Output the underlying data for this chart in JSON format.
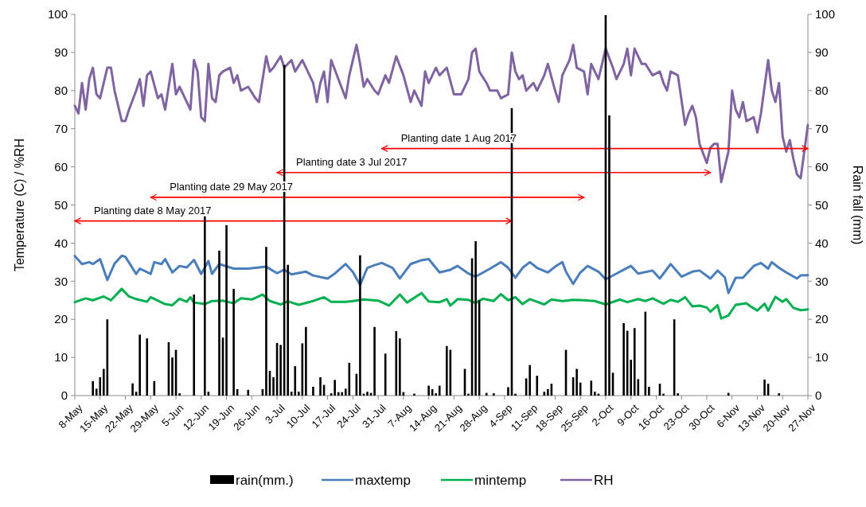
{
  "chart_data": {
    "type": "line",
    "xlabel": null,
    "ylabel": "Temperature (C) / %RH",
    "y2label": "Rain fall (mm)",
    "legend": "bottom",
    "xlim": [
      "2017-05-08",
      "2017-11-27"
    ],
    "xticks": [
      {
        "value": "2017-05-08",
        "label": "8-May"
      },
      {
        "value": "2017-05-15",
        "label": "15-May"
      },
      {
        "value": "2017-05-22",
        "label": "22-May"
      },
      {
        "value": "2017-05-29",
        "label": "29-May"
      },
      {
        "value": "2017-06-05",
        "label": "5-Jun"
      },
      {
        "value": "2017-06-12",
        "label": "12-Jun"
      },
      {
        "value": "2017-06-19",
        "label": "19-Jun"
      },
      {
        "value": "2017-06-26",
        "label": "26-Jun"
      },
      {
        "value": "2017-07-03",
        "label": "3-Jul"
      },
      {
        "value": "2017-07-10",
        "label": "10-Jul"
      },
      {
        "value": "2017-07-17",
        "label": "17-Jul"
      },
      {
        "value": "2017-07-24",
        "label": "24-Jul"
      },
      {
        "value": "2017-07-31",
        "label": "31-Jul"
      },
      {
        "value": "2017-08-07",
        "label": "7-Aug"
      },
      {
        "value": "2017-08-14",
        "label": "14-Aug"
      },
      {
        "value": "2017-08-21",
        "label": "21-Aug"
      },
      {
        "value": "2017-08-28",
        "label": "28-Aug"
      },
      {
        "value": "2017-09-04",
        "label": "4-Sep"
      },
      {
        "value": "2017-09-11",
        "label": "11-Sep"
      },
      {
        "value": "2017-09-18",
        "label": "18-Sep"
      },
      {
        "value": "2017-09-25",
        "label": "25-Sep"
      },
      {
        "value": "2017-10-02",
        "label": "2-Oct"
      },
      {
        "value": "2017-10-09",
        "label": "9-Oct"
      },
      {
        "value": "2017-10-16",
        "label": "16-Oct"
      },
      {
        "value": "2017-10-23",
        "label": "23-Oct"
      },
      {
        "value": "2017-10-30",
        "label": "30-Oct"
      },
      {
        "value": "2017-11-06",
        "label": "6-Nov"
      },
      {
        "value": "2017-11-13",
        "label": "13-Nov"
      },
      {
        "value": "2017-11-20",
        "label": "20-Nov"
      },
      {
        "value": "2017-11-27",
        "label": "27-Nov"
      }
    ],
    "ylim": [
      0,
      100
    ],
    "yticks": [
      0,
      10,
      20,
      30,
      40,
      50,
      60,
      70,
      80,
      90,
      100
    ],
    "y2lim": [
      0,
      100
    ],
    "y2ticks": [
      0,
      10,
      20,
      30,
      40,
      50,
      60,
      70,
      80,
      90,
      100
    ],
    "annotations": [
      "Planting date 8 May 2017",
      "Planting date 29 May 2017",
      "Planting date 3 Jul 2017",
      "Planting date 1 Aug 2017"
    ],
    "series": [
      {
        "name": "rain(mm.)",
        "type": "bar",
        "axis": "y2",
        "color": "#000000",
        "x": [
          "2017-05-13",
          "2017-05-14",
          "2017-05-15",
          "2017-05-16",
          "2017-05-17",
          "2017-05-24",
          "2017-05-25",
          "2017-05-26",
          "2017-05-28",
          "2017-05-30",
          "2017-06-03",
          "2017-06-04",
          "2017-06-05",
          "2017-06-06",
          "2017-06-10",
          "2017-06-13",
          "2017-06-14",
          "2017-06-17",
          "2017-06-18",
          "2017-06-19",
          "2017-06-21",
          "2017-06-22",
          "2017-06-25",
          "2017-06-29",
          "2017-06-30",
          "2017-07-01",
          "2017-07-02",
          "2017-07-03",
          "2017-07-04",
          "2017-07-05",
          "2017-07-06",
          "2017-07-07",
          "2017-07-08",
          "2017-07-09",
          "2017-07-10",
          "2017-07-11",
          "2017-07-13",
          "2017-07-15",
          "2017-07-16",
          "2017-07-18",
          "2017-07-19",
          "2017-07-20",
          "2017-07-21",
          "2017-07-22",
          "2017-07-23",
          "2017-07-25",
          "2017-07-26",
          "2017-07-27",
          "2017-07-28",
          "2017-07-29",
          "2017-07-30",
          "2017-08-02",
          "2017-08-05",
          "2017-08-06",
          "2017-08-07",
          "2017-08-10",
          "2017-08-14",
          "2017-08-15",
          "2017-08-16",
          "2017-08-17",
          "2017-08-19",
          "2017-08-20",
          "2017-08-24",
          "2017-08-25",
          "2017-08-26",
          "2017-08-27",
          "2017-08-28",
          "2017-08-30",
          "2017-09-01",
          "2017-09-05",
          "2017-09-06",
          "2017-09-07",
          "2017-09-10",
          "2017-09-11",
          "2017-09-13",
          "2017-09-15",
          "2017-09-16",
          "2017-09-17",
          "2017-09-21",
          "2017-09-23",
          "2017-09-24",
          "2017-09-25",
          "2017-09-28",
          "2017-09-29",
          "2017-09-30",
          "2017-10-02",
          "2017-10-03",
          "2017-10-04",
          "2017-10-07",
          "2017-10-08",
          "2017-10-09",
          "2017-10-10",
          "2017-10-11",
          "2017-10-13",
          "2017-10-14",
          "2017-10-17",
          "2017-10-18",
          "2017-10-21",
          "2017-10-22",
          "2017-11-05",
          "2017-11-15",
          "2017-11-16",
          "2017-11-19"
        ],
        "values": [
          3.8,
          1.8,
          4.8,
          7,
          20,
          3.2,
          1,
          16,
          15,
          3.8,
          14,
          10,
          12,
          0.6,
          26.5,
          47,
          1,
          38,
          15.2,
          44.7,
          28,
          1.7,
          1.5,
          1.7,
          39,
          6.5,
          4.8,
          13.8,
          13.3,
          86.7,
          34.3,
          1,
          7.7,
          1,
          13.7,
          18,
          2.3,
          4.8,
          2.8,
          0.6,
          4.1,
          0.9,
          0.9,
          1.8,
          8.6,
          5.7,
          36.8,
          0.5,
          1,
          0.7,
          18,
          11,
          16.9,
          15,
          0.9,
          0.5,
          2.6,
          1.7,
          0.6,
          2.6,
          13,
          12,
          7,
          0.5,
          36,
          40.5,
          25,
          0.7,
          0.6,
          2.2,
          75.4,
          0.5,
          4.5,
          8,
          5.2,
          1,
          1.7,
          3.1,
          12,
          4.8,
          7,
          3.4,
          3.9,
          1,
          0.5,
          99.8,
          73.5,
          6,
          19,
          17,
          9.4,
          17.7,
          4.3,
          22,
          2.3,
          3.1,
          0.5,
          20,
          0.6,
          0.7,
          4.2,
          3.1,
          0.6
        ]
      },
      {
        "name": "maxtemp",
        "color": "#4a7ebb",
        "x": [
          "2017-05-08",
          "2017-05-10",
          "2017-05-12",
          "2017-05-13",
          "2017-05-15",
          "2017-05-17",
          "2017-05-19",
          "2017-05-21",
          "2017-05-22",
          "2017-05-25",
          "2017-05-26",
          "2017-05-29",
          "2017-05-30",
          "2017-06-01",
          "2017-06-02",
          "2017-06-04",
          "2017-06-06",
          "2017-06-08",
          "2017-06-10",
          "2017-06-12",
          "2017-06-14",
          "2017-06-15",
          "2017-06-17",
          "2017-06-21",
          "2017-06-25",
          "2017-06-30",
          "2017-07-03",
          "2017-07-05",
          "2017-07-07",
          "2017-07-11",
          "2017-07-13",
          "2017-07-17",
          "2017-07-19",
          "2017-07-22",
          "2017-07-24",
          "2017-07-26",
          "2017-07-28",
          "2017-07-30",
          "2017-08-01",
          "2017-08-04",
          "2017-08-06",
          "2017-08-09",
          "2017-08-12",
          "2017-08-14",
          "2017-08-17",
          "2017-08-20",
          "2017-08-22",
          "2017-08-25",
          "2017-08-27",
          "2017-08-31",
          "2017-09-03",
          "2017-09-05",
          "2017-09-07",
          "2017-09-09",
          "2017-09-11",
          "2017-09-13",
          "2017-09-16",
          "2017-09-18",
          "2017-09-20",
          "2017-09-21",
          "2017-09-23",
          "2017-09-25",
          "2017-09-27",
          "2017-09-30",
          "2017-10-02",
          "2017-10-05",
          "2017-10-07",
          "2017-10-09",
          "2017-10-11",
          "2017-10-15",
          "2017-10-17",
          "2017-10-20",
          "2017-10-23",
          "2017-10-26",
          "2017-10-28",
          "2017-10-31",
          "2017-11-02",
          "2017-11-04",
          "2017-11-05",
          "2017-11-07",
          "2017-11-09",
          "2017-11-12",
          "2017-11-14",
          "2017-11-16",
          "2017-11-17",
          "2017-11-19",
          "2017-11-21",
          "2017-11-24",
          "2017-11-25",
          "2017-11-27"
        ],
        "values": [
          36.6,
          34.5,
          35,
          34.5,
          35.8,
          30.3,
          34.6,
          36.7,
          36.4,
          31.9,
          33.3,
          31.9,
          35,
          34.5,
          35.8,
          32.3,
          34,
          33.6,
          35.6,
          31.9,
          35.3,
          31.9,
          34.5,
          33.3,
          33.3,
          33.8,
          32.1,
          33,
          31.8,
          32.5,
          31.5,
          30.7,
          32,
          34.5,
          32.4,
          29,
          33.5,
          34.2,
          34.8,
          33.5,
          30.7,
          34.5,
          35.5,
          35.8,
          32.3,
          33,
          34,
          32,
          31.2,
          33.3,
          35,
          33.5,
          30.9,
          33.5,
          35,
          33.5,
          32.3,
          33.8,
          35,
          32.5,
          29.3,
          32.3,
          34,
          32.5,
          30.5,
          32,
          33,
          34,
          32,
          32.8,
          30.7,
          34.5,
          31.2,
          32.5,
          32.8,
          30.7,
          32.8,
          31,
          26.9,
          30.9,
          30.9,
          34,
          34.8,
          33.3,
          35,
          33.5,
          32.3,
          30.7,
          31.5,
          31.6
        ]
      },
      {
        "name": "mintemp",
        "color": "#00b050",
        "x": [
          "2017-05-08",
          "2017-05-11",
          "2017-05-13",
          "2017-05-16",
          "2017-05-18",
          "2017-05-21",
          "2017-05-23",
          "2017-05-25",
          "2017-05-28",
          "2017-05-29",
          "2017-06-02",
          "2017-06-04",
          "2017-06-06",
          "2017-06-08",
          "2017-06-09",
          "2017-06-10",
          "2017-06-13",
          "2017-06-15",
          "2017-06-18",
          "2017-06-21",
          "2017-06-23",
          "2017-06-26",
          "2017-06-29",
          "2017-07-01",
          "2017-07-04",
          "2017-07-06",
          "2017-07-09",
          "2017-07-13",
          "2017-07-16",
          "2017-07-18",
          "2017-07-22",
          "2017-07-24",
          "2017-07-27",
          "2017-07-31",
          "2017-08-03",
          "2017-08-06",
          "2017-08-08",
          "2017-08-12",
          "2017-08-14",
          "2017-08-17",
          "2017-08-19",
          "2017-08-20",
          "2017-08-22",
          "2017-08-25",
          "2017-08-27",
          "2017-08-29",
          "2017-09-01",
          "2017-09-03",
          "2017-09-05",
          "2017-09-07",
          "2017-09-09",
          "2017-09-11",
          "2017-09-13",
          "2017-09-15",
          "2017-09-17",
          "2017-09-20",
          "2017-09-23",
          "2017-09-26",
          "2017-09-29",
          "2017-10-02",
          "2017-10-06",
          "2017-10-08",
          "2017-10-11",
          "2017-10-13",
          "2017-10-15",
          "2017-10-18",
          "2017-10-20",
          "2017-10-22",
          "2017-10-24",
          "2017-10-26",
          "2017-10-28",
          "2017-10-30",
          "2017-10-31",
          "2017-11-02",
          "2017-11-03",
          "2017-11-05",
          "2017-11-07",
          "2017-11-10",
          "2017-11-11",
          "2017-11-13",
          "2017-11-15",
          "2017-11-16",
          "2017-11-18",
          "2017-11-20",
          "2017-11-21",
          "2017-11-23",
          "2017-11-25",
          "2017-11-27"
        ],
        "values": [
          24.5,
          25.5,
          25,
          26,
          25,
          28,
          26,
          25.3,
          24.6,
          25.8,
          24,
          23.7,
          25.4,
          24.6,
          25.8,
          24.4,
          24,
          24.8,
          24.9,
          24.2,
          25.5,
          25.2,
          26.5,
          24.8,
          23.9,
          24.7,
          23.8,
          24.8,
          25.8,
          24.6,
          24.6,
          24.8,
          25.2,
          24.9,
          23.6,
          26.5,
          24.4,
          26.9,
          24.7,
          24.5,
          25.3,
          23.6,
          25.3,
          25.1,
          24.3,
          25.4,
          24.8,
          26.6,
          25,
          25.8,
          24,
          25.3,
          24.6,
          23.9,
          25.2,
          24.8,
          25.1,
          25,
          24.8,
          23.9,
          25.2,
          24.5,
          25.3,
          24.8,
          25.5,
          24.1,
          25.1,
          24.6,
          25.8,
          23.4,
          23.6,
          23.1,
          22,
          23.7,
          20.2,
          21,
          23.8,
          24.2,
          23.5,
          22.3,
          24.1,
          22.3,
          25.9,
          24.6,
          25.3,
          23,
          22.4,
          22.6
        ]
      },
      {
        "name": "RH",
        "color": "#8064a2",
        "x": [
          "2017-05-08",
          "2017-05-09",
          "2017-05-10",
          "2017-05-11",
          "2017-05-12",
          "2017-05-13",
          "2017-05-14",
          "2017-05-15",
          "2017-05-17",
          "2017-05-18",
          "2017-05-19",
          "2017-05-21",
          "2017-05-22",
          "2017-05-23",
          "2017-05-25",
          "2017-05-26",
          "2017-05-27",
          "2017-05-28",
          "2017-05-29",
          "2017-05-31",
          "2017-06-01",
          "2017-06-02",
          "2017-06-04",
          "2017-06-05",
          "2017-06-06",
          "2017-06-08",
          "2017-06-09",
          "2017-06-10",
          "2017-06-11",
          "2017-06-12",
          "2017-06-13",
          "2017-06-14",
          "2017-06-15",
          "2017-06-16",
          "2017-06-17",
          "2017-06-18",
          "2017-06-20",
          "2017-06-21",
          "2017-06-22",
          "2017-06-23",
          "2017-06-25",
          "2017-06-27",
          "2017-06-28",
          "2017-06-30",
          "2017-07-01",
          "2017-07-02",
          "2017-07-04",
          "2017-07-05",
          "2017-07-07",
          "2017-07-08",
          "2017-07-10",
          "2017-07-12",
          "2017-07-13",
          "2017-07-14",
          "2017-07-15",
          "2017-07-16",
          "2017-07-17",
          "2017-07-18",
          "2017-07-20",
          "2017-07-22",
          "2017-07-23",
          "2017-07-25",
          "2017-07-26",
          "2017-07-27",
          "2017-07-28",
          "2017-07-30",
          "2017-07-31",
          "2017-08-02",
          "2017-08-03",
          "2017-08-05",
          "2017-08-07",
          "2017-08-09",
          "2017-08-10",
          "2017-08-12",
          "2017-08-13",
          "2017-08-14",
          "2017-08-16",
          "2017-08-17",
          "2017-08-19",
          "2017-08-21",
          "2017-08-23",
          "2017-08-25",
          "2017-08-26",
          "2017-08-27",
          "2017-08-28",
          "2017-08-30",
          "2017-08-31",
          "2017-09-02",
          "2017-09-03",
          "2017-09-05",
          "2017-09-06",
          "2017-09-07",
          "2017-09-08",
          "2017-09-09",
          "2017-09-10",
          "2017-09-12",
          "2017-09-13",
          "2017-09-15",
          "2017-09-16",
          "2017-09-18",
          "2017-09-19",
          "2017-09-20",
          "2017-09-22",
          "2017-09-23",
          "2017-09-24",
          "2017-09-26",
          "2017-09-27",
          "2017-09-28",
          "2017-09-29",
          "2017-09-30",
          "2017-10-02",
          "2017-10-04",
          "2017-10-05",
          "2017-10-07",
          "2017-10-08",
          "2017-10-09",
          "2017-10-10",
          "2017-10-12",
          "2017-10-13",
          "2017-10-15",
          "2017-10-17",
          "2017-10-18",
          "2017-10-19",
          "2017-10-20",
          "2017-10-22",
          "2017-10-24",
          "2017-10-25",
          "2017-10-26",
          "2017-10-27",
          "2017-10-28",
          "2017-10-30",
          "2017-10-31",
          "2017-11-01",
          "2017-11-02",
          "2017-11-03",
          "2017-11-04",
          "2017-11-05",
          "2017-11-06",
          "2017-11-07",
          "2017-11-08",
          "2017-11-09",
          "2017-11-10",
          "2017-11-12",
          "2017-11-13",
          "2017-11-14",
          "2017-11-16",
          "2017-11-17",
          "2017-11-18",
          "2017-11-19",
          "2017-11-20",
          "2017-11-21",
          "2017-11-22",
          "2017-11-23",
          "2017-11-24",
          "2017-11-25",
          "2017-11-27"
        ],
        "values": [
          76,
          74,
          82,
          75,
          83,
          86,
          79,
          78,
          86,
          86,
          80,
          72,
          72,
          75,
          80,
          83,
          76,
          84,
          85,
          78,
          79,
          75,
          87,
          79,
          81,
          77,
          75,
          88,
          85,
          73,
          72,
          87,
          78,
          77,
          84,
          85,
          86,
          82,
          84,
          80,
          81,
          78,
          77,
          89,
          85,
          86,
          89,
          86,
          88,
          85,
          88,
          84,
          82,
          77,
          82,
          85,
          77,
          88,
          83,
          78,
          84,
          92,
          87,
          81,
          83,
          80,
          79,
          84,
          82,
          89,
          84,
          77,
          80,
          76,
          85,
          82,
          86,
          84,
          86,
          79,
          79,
          83,
          90,
          91,
          85,
          82,
          80,
          80,
          78,
          79,
          90,
          85,
          83,
          84,
          80,
          82,
          80,
          84,
          87,
          80,
          77,
          84,
          88,
          92,
          86,
          85,
          79,
          87,
          85,
          83,
          91,
          86,
          83,
          87,
          91,
          84,
          91,
          87,
          87,
          84,
          85,
          82,
          80,
          85,
          84,
          71,
          74,
          76,
          73,
          66,
          61,
          65,
          66,
          66,
          56,
          60,
          64,
          80,
          75,
          73,
          77,
          72,
          73,
          69,
          74,
          88,
          80,
          77,
          82,
          68,
          64,
          67,
          62,
          58,
          57,
          71
        ]
      },
      {
        "color": "#ff0000",
        "x": [
          "2017-05-08",
          "2017-09-06"
        ],
        "values": [
          45.8,
          45.8
        ]
      },
      {
        "color": "#ff0000",
        "x": [
          "2017-05-29",
          "2017-09-26"
        ],
        "values": [
          52,
          52
        ]
      },
      {
        "color": "#ff0000",
        "x": [
          "2017-07-03",
          "2017-10-31"
        ],
        "values": [
          58.5,
          58.5
        ]
      },
      {
        "color": "#ff0000",
        "x": [
          "2017-08-01",
          "2017-11-27"
        ],
        "values": [
          64.8,
          64.8
        ]
      }
    ]
  }
}
